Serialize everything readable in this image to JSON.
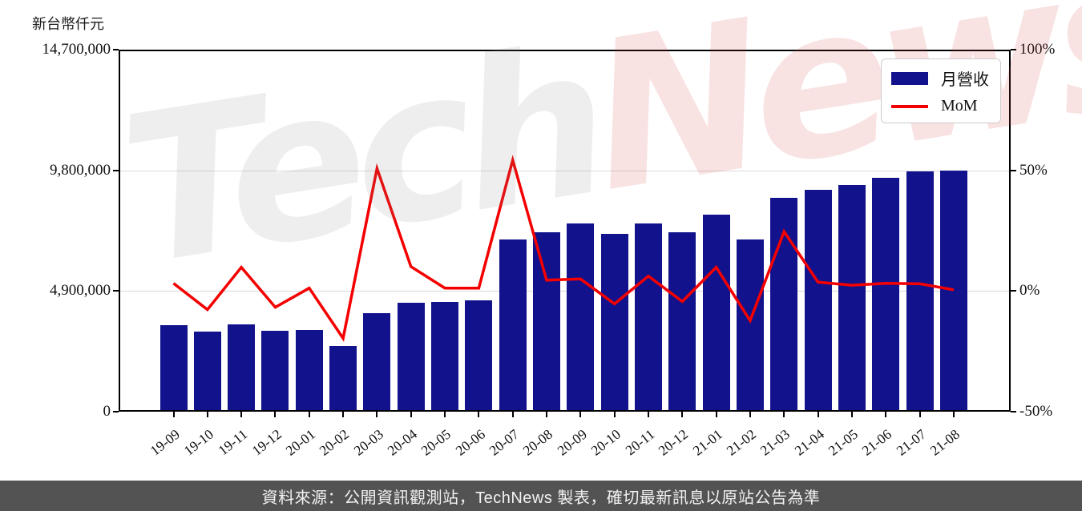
{
  "title": "新台幣仟元",
  "legend": {
    "bar_label": "月營收",
    "line_label": "MoM"
  },
  "watermark": {
    "part1": "Tech",
    "part2": "News"
  },
  "footer": "資料來源：公開資訊觀測站，TechNews 製表，確切最新訊息以原站公告為準",
  "colors": {
    "bar": "#12128c",
    "line": "#f40000",
    "grid": "#d9d9d9",
    "spine": "#000000",
    "footer_bg": "#535353",
    "footer_text": "#f2f2f2"
  },
  "left_axis": {
    "unit_label": "新台幣仟元",
    "tick_labels": [
      "0",
      "4,900,000",
      "9,800,000",
      "14,700,000"
    ],
    "tick_values": [
      0,
      4900000,
      9800000,
      14700000
    ]
  },
  "right_axis": {
    "tick_labels": [
      "-50%",
      "0%",
      "50%",
      "100%"
    ],
    "tick_values": [
      -50,
      0,
      50,
      100
    ]
  },
  "chart_data": {
    "type": "bar",
    "title": "",
    "categories": [
      "19-09",
      "19-10",
      "19-11",
      "19-12",
      "20-01",
      "20-02",
      "20-03",
      "20-04",
      "20-05",
      "20-06",
      "20-07",
      "20-08",
      "20-09",
      "20-10",
      "20-11",
      "20-12",
      "21-01",
      "21-02",
      "21-03",
      "21-04",
      "21-05",
      "21-06",
      "21-07",
      "21-08"
    ],
    "series": [
      {
        "name": "月營收",
        "type": "bar",
        "axis": "left",
        "unit": "新台幣仟元",
        "values": [
          3480000,
          3200000,
          3510000,
          3250000,
          3280000,
          2620000,
          3980000,
          4390000,
          4440000,
          4480000,
          6990000,
          7290000,
          7640000,
          7210000,
          7640000,
          7290000,
          8000000,
          6990000,
          8710000,
          9030000,
          9230000,
          9510000,
          9770000,
          9800000
        ]
      },
      {
        "name": "MoM",
        "type": "line",
        "axis": "right",
        "unit": "%",
        "values": [
          3,
          -8,
          9.7,
          -7,
          1,
          -20,
          51,
          10,
          1,
          1,
          54.5,
          4.3,
          4.8,
          -5.6,
          6,
          -4.6,
          9.7,
          -12.6,
          24.6,
          3.5,
          2.2,
          3,
          2.8,
          0.3
        ]
      }
    ],
    "left_ylim": [
      0,
      14700000
    ],
    "right_ylim": [
      -50,
      100
    ],
    "grid": "horizontal",
    "legend_position": "upper right"
  }
}
